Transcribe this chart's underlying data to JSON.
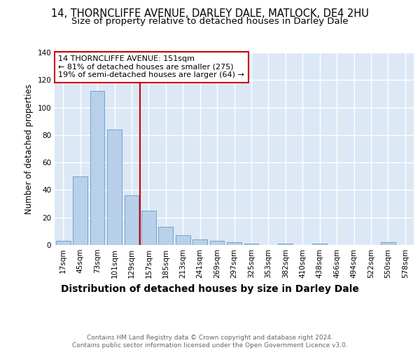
{
  "title": "14, THORNCLIFFE AVENUE, DARLEY DALE, MATLOCK, DE4 2HU",
  "subtitle": "Size of property relative to detached houses in Darley Dale",
  "xlabel": "Distribution of detached houses by size in Darley Dale",
  "ylabel": "Number of detached properties",
  "categories": [
    "17sqm",
    "45sqm",
    "73sqm",
    "101sqm",
    "129sqm",
    "157sqm",
    "185sqm",
    "213sqm",
    "241sqm",
    "269sqm",
    "297sqm",
    "325sqm",
    "353sqm",
    "382sqm",
    "410sqm",
    "438sqm",
    "466sqm",
    "494sqm",
    "522sqm",
    "550sqm",
    "578sqm"
  ],
  "values": [
    3,
    50,
    112,
    84,
    36,
    25,
    13,
    7,
    4,
    3,
    2,
    1,
    0,
    1,
    0,
    1,
    0,
    0,
    0,
    2,
    0
  ],
  "bar_color": "#b8d0ea",
  "bar_edge_color": "#6699cc",
  "vline_color": "#cc0000",
  "annotation_text": "14 THORNCLIFFE AVENUE: 151sqm\n← 81% of detached houses are smaller (275)\n19% of semi-detached houses are larger (64) →",
  "annotation_box_color": "#ffffff",
  "annotation_box_edge_color": "#cc0000",
  "background_color": "#dce8f5",
  "ylim": [
    0,
    140
  ],
  "yticks": [
    0,
    20,
    40,
    60,
    80,
    100,
    120,
    140
  ],
  "footer_text": "Contains HM Land Registry data © Crown copyright and database right 2024.\nContains public sector information licensed under the Open Government Licence v3.0.",
  "title_fontsize": 10.5,
  "subtitle_fontsize": 9.5,
  "xlabel_fontsize": 10,
  "ylabel_fontsize": 8.5,
  "tick_fontsize": 7.5,
  "annotation_fontsize": 8,
  "footer_fontsize": 6.5
}
